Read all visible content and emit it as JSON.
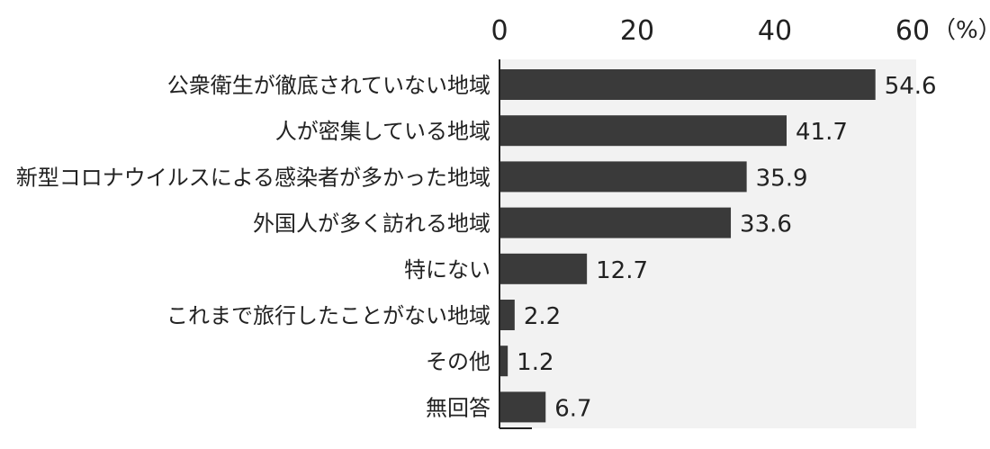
{
  "chart_data": {
    "type": "bar",
    "orientation": "horizontal",
    "title": "",
    "xlabel": "",
    "ylabel": "",
    "x_unit": "（%）",
    "xlim": [
      0,
      60
    ],
    "x_ticks": [
      0,
      20,
      40,
      60
    ],
    "grid": false,
    "categories": [
      "公衆衛生が徹底されていない地域",
      "人が密集している地域",
      "新型コロナウイルスによる感染者が多かった地域",
      "外国人が多く訪れる地域",
      "特にない",
      "これまで旅行したことがない地域",
      "その他",
      "無回答"
    ],
    "values": [
      54.6,
      41.7,
      35.9,
      33.6,
      12.7,
      2.2,
      1.2,
      6.7
    ],
    "value_labels": [
      "54.6",
      "41.7",
      "35.9",
      "33.6",
      "12.7",
      "2.2",
      "1.2",
      "6.7"
    ],
    "colors": {
      "bar": "#3a3a3a",
      "plot_background": "#f2f2f2",
      "axis": "#222222"
    }
  }
}
